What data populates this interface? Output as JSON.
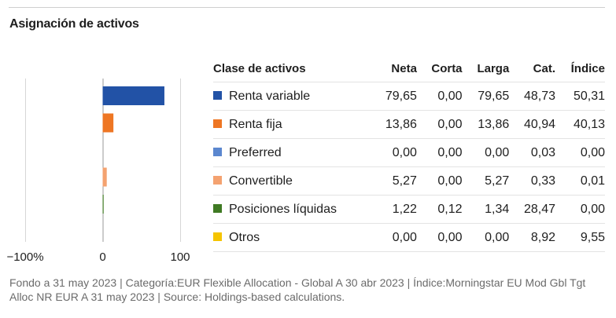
{
  "title": "Asignación de activos",
  "table": {
    "headers": [
      "Clase de activos",
      "Neta",
      "Corta",
      "Larga",
      "Cat.",
      "Índice"
    ],
    "rows": [
      {
        "name": "Renta variable",
        "color": "#2252a6",
        "values": [
          "79,65",
          "0,00",
          "79,65",
          "48,73",
          "50,31"
        ]
      },
      {
        "name": "Renta fija",
        "color": "#ee7623",
        "values": [
          "13,86",
          "0,00",
          "13,86",
          "40,94",
          "40,13"
        ]
      },
      {
        "name": "Preferred",
        "color": "#5b87cf",
        "values": [
          "0,00",
          "0,00",
          "0,00",
          "0,03",
          "0,00"
        ]
      },
      {
        "name": "Convertible",
        "color": "#f4a270",
        "values": [
          "5,27",
          "0,00",
          "5,27",
          "0,33",
          "0,01"
        ]
      },
      {
        "name": "Posiciones líquidas",
        "color": "#3f7a23",
        "values": [
          "1,22",
          "0,12",
          "1,34",
          "28,47",
          "0,00"
        ]
      },
      {
        "name": "Otros",
        "color": "#f5c400",
        "values": [
          "0,00",
          "0,00",
          "0,00",
          "8,92",
          "9,55"
        ]
      }
    ]
  },
  "chart_data": {
    "type": "bar",
    "orientation": "horizontal",
    "categories": [
      "Renta variable",
      "Renta fija",
      "Preferred",
      "Convertible",
      "Posiciones líquidas",
      "Otros"
    ],
    "values": [
      79.65,
      13.86,
      0.0,
      5.27,
      1.22,
      0.0
    ],
    "colors": [
      "#2252a6",
      "#ee7623",
      "#5b87cf",
      "#f4a270",
      "#3f7a23",
      "#f5c400"
    ],
    "xlim": [
      -100,
      100
    ],
    "xticks": [
      -100,
      0,
      100
    ],
    "xtick_labels": [
      "−100%",
      "0",
      "100"
    ],
    "grid": true
  },
  "footer": "Fondo a 31 may 2023 | Categoría:EUR Flexible Allocation - Global A 30 abr 2023 | Índice:Morningstar EU Mod Gbl Tgt Alloc NR EUR A 31 may 2023 | Source: Holdings-based calculations."
}
